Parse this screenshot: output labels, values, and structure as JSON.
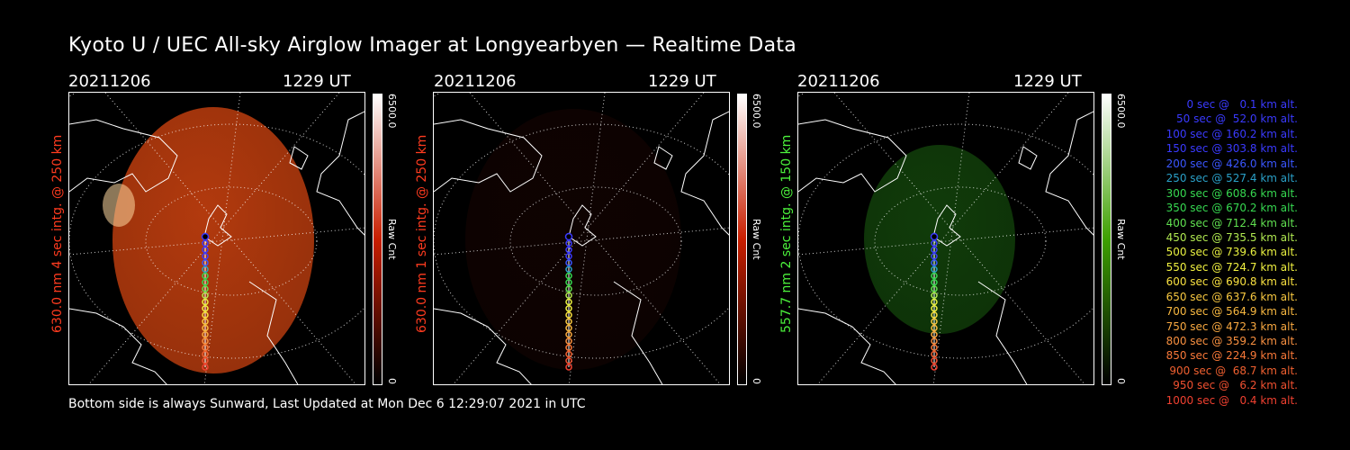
{
  "title": "Kyoto U / UEC All-sky Airglow Imager at Longyearbyen — Realtime Data",
  "panels": [
    {
      "date": "20211206",
      "time": "1229 UT",
      "ylabel": "630.0 nm 4 sec intg. @ 250 km",
      "label_color": "#ff3b1f",
      "cbar_max": "6500.0",
      "cbar_unit": "Raw Cnt",
      "cbar_min": "0",
      "cbar_color": "#c81e00",
      "glow_color": "#d24410",
      "glow_level": 0.85
    },
    {
      "date": "20211206",
      "time": "1229 UT",
      "ylabel": "630.0 nm 1 sec intg. @ 250 km",
      "label_color": "#ff3b1f",
      "cbar_max": "6500.0",
      "cbar_unit": "Raw Cnt",
      "cbar_min": "0",
      "cbar_color": "#c81e00",
      "glow_color": "#3a0b04",
      "glow_level": 0.25
    },
    {
      "date": "20211206",
      "time": "1229 UT",
      "ylabel": "557.7 nm 2 sec intg. @ 150 km",
      "label_color": "#4cf23c",
      "cbar_max": "6500.0",
      "cbar_unit": "Raw Cnt",
      "cbar_min": "0",
      "cbar_color": "#3ea000",
      "glow_color": "#1e6d12",
      "glow_level": 0.55
    }
  ],
  "legend": [
    {
      "text": "0 sec @   0.1 km alt.",
      "color": "#3a3aff"
    },
    {
      "text": "50 sec @  52.0 km alt.",
      "color": "#3a3aff"
    },
    {
      "text": "100 sec @ 160.2 km alt.",
      "color": "#3a3aff"
    },
    {
      "text": "150 sec @ 303.8 km alt.",
      "color": "#3a3aff"
    },
    {
      "text": "200 sec @ 426.0 km alt.",
      "color": "#3a56ff"
    },
    {
      "text": "250 sec @ 527.4 km alt.",
      "color": "#2aa0c8"
    },
    {
      "text": "300 sec @ 608.6 km alt.",
      "color": "#36d850"
    },
    {
      "text": "350 sec @ 670.2 km alt.",
      "color": "#36d850"
    },
    {
      "text": "400 sec @ 712.4 km alt.",
      "color": "#60e050"
    },
    {
      "text": "450 sec @ 735.5 km alt.",
      "color": "#b0e850"
    },
    {
      "text": "500 sec @ 739.6 km alt.",
      "color": "#e8f040"
    },
    {
      "text": "550 sec @ 724.7 km alt.",
      "color": "#f0f040"
    },
    {
      "text": "600 sec @ 690.8 km alt.",
      "color": "#f8e040"
    },
    {
      "text": "650 sec @ 637.6 km alt.",
      "color": "#f8c840"
    },
    {
      "text": "700 sec @ 564.9 km alt.",
      "color": "#f8b840"
    },
    {
      "text": "750 sec @ 472.3 km alt.",
      "color": "#f8a840"
    },
    {
      "text": "800 sec @ 359.2 km alt.",
      "color": "#f89040"
    },
    {
      "text": "850 sec @ 224.9 km alt.",
      "color": "#f87838"
    },
    {
      "text": "900 sec @  68.7 km alt.",
      "color": "#f06030"
    },
    {
      "text": "950 sec @   6.2 km alt.",
      "color": "#f05030"
    },
    {
      "text": "1000 sec @   0.4 km alt.",
      "color": "#f04030"
    }
  ],
  "footer": "Bottom side is always Sunward, Last Updated at Mon Dec  6 12:29:07 2021 in UTC"
}
